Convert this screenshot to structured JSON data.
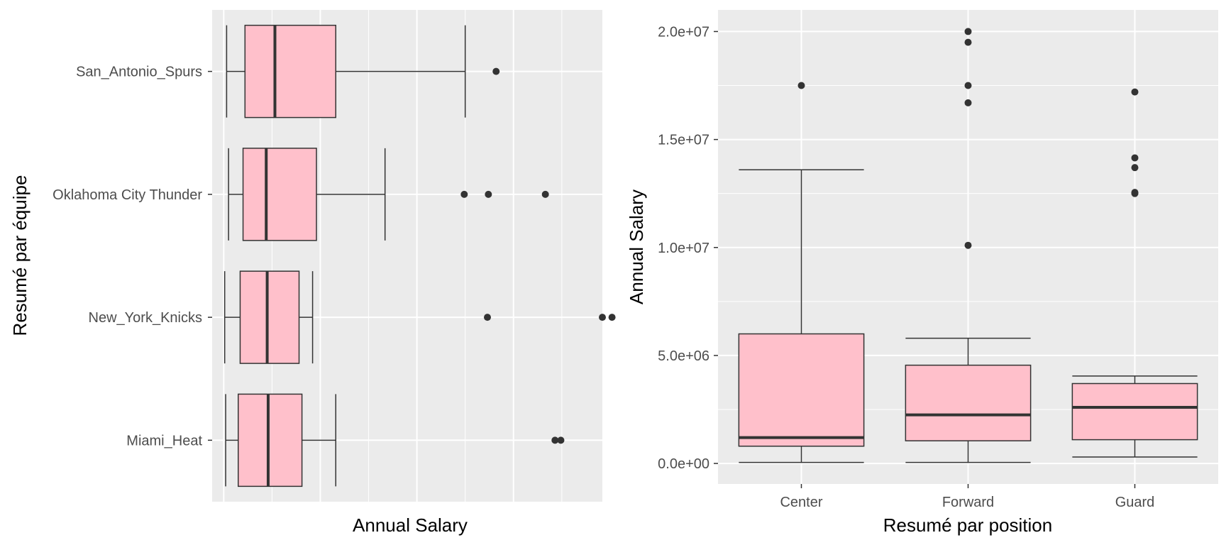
{
  "colors": {
    "panel_background": "#EBEBEB",
    "grid_major": "#FFFFFF",
    "box_fill": "#FFC0CB",
    "box_stroke": "#333333",
    "outlier": "#333333"
  },
  "chart_data": [
    {
      "type": "boxplot",
      "orientation": "horizontal",
      "xlabel": "Annual Salary",
      "ylabel": "Resumé par équipe",
      "value_tick_labels_shown": false,
      "xlim": [
        -1.2,
        39.2
      ],
      "value_gridlines_major": [
        0,
        10,
        20,
        30
      ],
      "value_gridlines_minor": [
        5,
        15,
        25,
        35
      ],
      "categories": [
        "San_Antonio_Spurs",
        "Oklahoma City Thunder",
        "New_York_Knicks",
        "Miami_Heat"
      ],
      "boxes": [
        {
          "category": "San_Antonio_Spurs",
          "whisker_low": 0.3,
          "q1": 2.2,
          "median": 5.3,
          "q3": 11.6,
          "whisker_high": 25.0,
          "outliers": [
            28.2
          ]
        },
        {
          "category": "Oklahoma City Thunder",
          "whisker_low": 0.5,
          "q1": 2.0,
          "median": 4.4,
          "q3": 9.6,
          "whisker_high": 16.7,
          "outliers": [
            24.9,
            27.4,
            33.3
          ]
        },
        {
          "category": "New_York_Knicks",
          "whisker_low": 0.1,
          "q1": 1.7,
          "median": 4.5,
          "q3": 7.8,
          "whisker_high": 9.2,
          "outliers": [
            27.3,
            39.2,
            40.2
          ]
        },
        {
          "category": "Miami_Heat",
          "whisker_low": 0.2,
          "q1": 1.5,
          "median": 4.6,
          "q3": 8.1,
          "whisker_high": 11.6,
          "outliers": [
            34.3,
            34.9
          ]
        }
      ]
    },
    {
      "type": "boxplot",
      "orientation": "vertical",
      "xlabel": "Resumé par position",
      "ylabel": "Annual Salary",
      "ylim": [
        -950000,
        21000000
      ],
      "y_tick_values": [
        0,
        5000000,
        10000000,
        15000000,
        20000000
      ],
      "y_tick_labels": [
        "0.0e+00",
        "5.0e+06",
        "1.0e+07",
        "1.5e+07",
        "2.0e+07"
      ],
      "categories": [
        "Center",
        "Forward",
        "Guard"
      ],
      "boxes": [
        {
          "category": "Center",
          "whisker_low": 50000,
          "q1": 800000,
          "median": 1200000,
          "q3": 6000000,
          "whisker_high": 13600000,
          "outliers": [
            17500000
          ]
        },
        {
          "category": "Forward",
          "whisker_low": 50000,
          "q1": 1050000,
          "median": 2250000,
          "q3": 4550000,
          "whisker_high": 5800000,
          "outliers": [
            10100000,
            16700000,
            17500000,
            19500000,
            20000000
          ]
        },
        {
          "category": "Guard",
          "whisker_low": 300000,
          "q1": 1100000,
          "median": 2600000,
          "q3": 3700000,
          "whisker_high": 4050000,
          "outliers": [
            12500000,
            12550000,
            13700000,
            14150000,
            17200000
          ]
        }
      ]
    }
  ]
}
